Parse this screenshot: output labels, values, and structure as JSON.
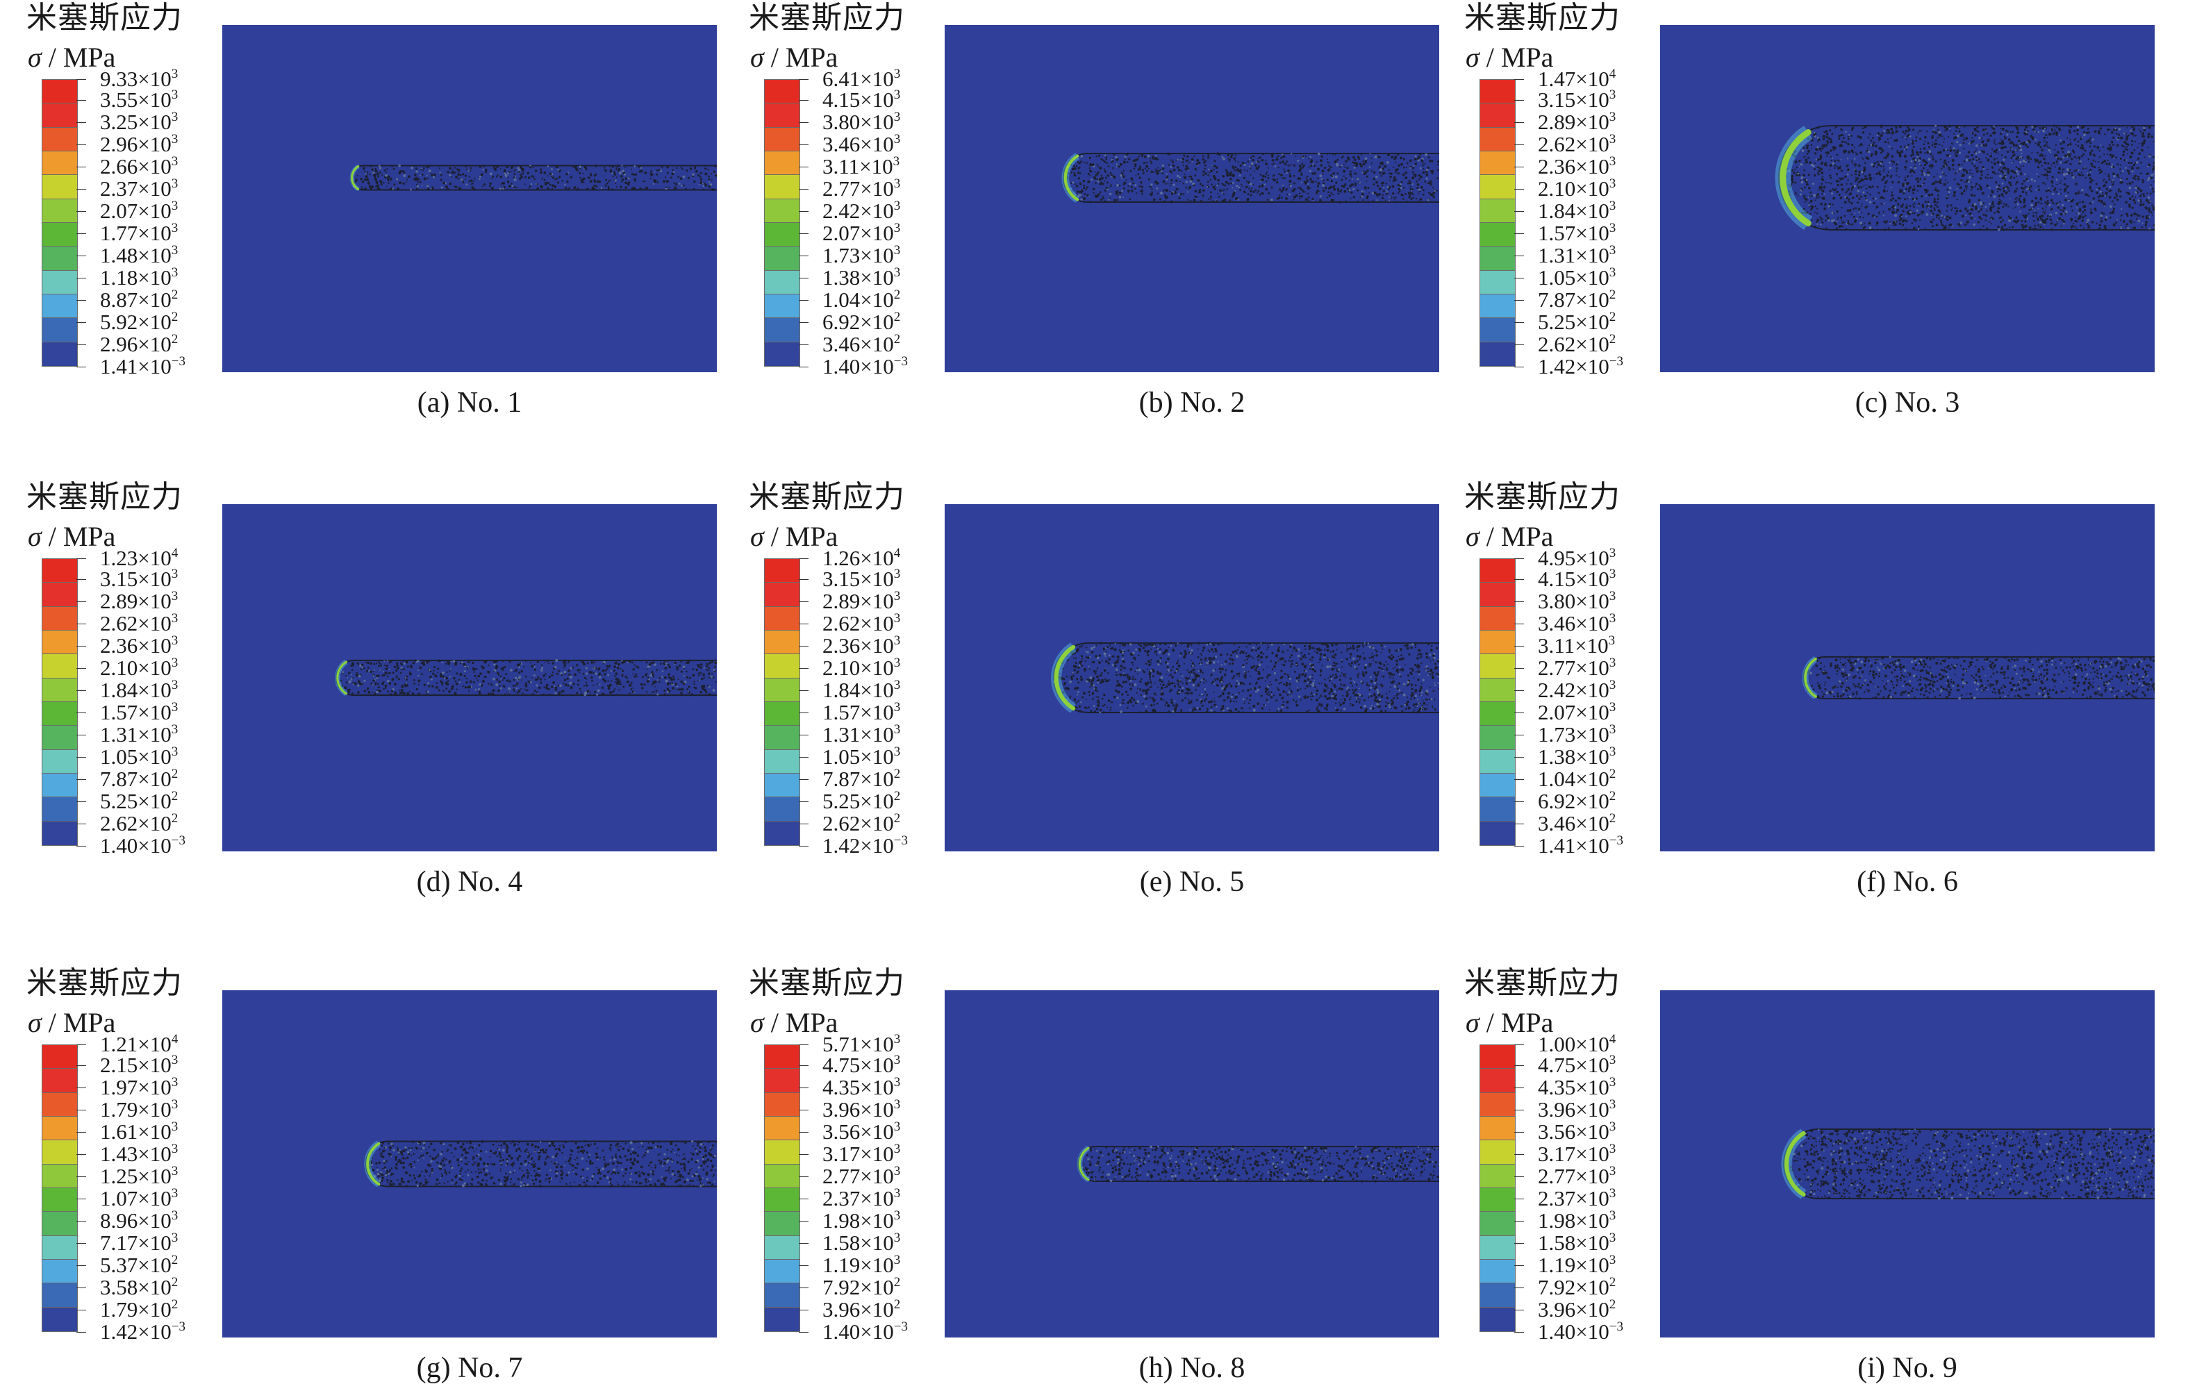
{
  "colors": {
    "background": "#303f99",
    "legend_bands_top_to_bottom": [
      "#e32b22",
      "#e4312b",
      "#e95a2a",
      "#ee9a2c",
      "#c8d22f",
      "#8fc93b",
      "#5cb737",
      "#56b45f",
      "#6cc7bd",
      "#52a9de",
      "#3a6ab5",
      "#33449c"
    ],
    "crack_dots": "#1b2030"
  },
  "panels": [
    {
      "id": "a",
      "title": "米塞斯应力",
      "unit_symbol": "σ",
      "unit_text": " / MPa",
      "caption": "(a) No. 1",
      "legend": [
        {
          "m": "9.33",
          "e": "3"
        },
        {
          "m": "3.55",
          "e": "3"
        },
        {
          "m": "3.25",
          "e": "3"
        },
        {
          "m": "2.96",
          "e": "3"
        },
        {
          "m": "2.66",
          "e": "3"
        },
        {
          "m": "2.37",
          "e": "3"
        },
        {
          "m": "2.07",
          "e": "3"
        },
        {
          "m": "1.77",
          "e": "3"
        },
        {
          "m": "1.48",
          "e": "3"
        },
        {
          "m": "1.18",
          "e": "3"
        },
        {
          "m": "8.87",
          "e": "2"
        },
        {
          "m": "5.92",
          "e": "2"
        },
        {
          "m": "2.96",
          "e": "2"
        },
        {
          "m": "1.41",
          "e": "−3"
        }
      ],
      "crack": {
        "tip": 0.26,
        "half_width": 0.035,
        "center": 0.44,
        "cap": "left"
      }
    },
    {
      "id": "b",
      "title": "米塞斯应力",
      "unit_symbol": "σ",
      "unit_text": " / MPa",
      "caption": "(b) No. 2",
      "legend": [
        {
          "m": "6.41",
          "e": "3"
        },
        {
          "m": "4.15",
          "e": "3"
        },
        {
          "m": "3.80",
          "e": "3"
        },
        {
          "m": "3.46",
          "e": "3"
        },
        {
          "m": "3.11",
          "e": "3"
        },
        {
          "m": "2.77",
          "e": "3"
        },
        {
          "m": "2.42",
          "e": "3"
        },
        {
          "m": "2.07",
          "e": "3"
        },
        {
          "m": "1.73",
          "e": "3"
        },
        {
          "m": "1.38",
          "e": "3"
        },
        {
          "m": "1.04",
          "e": "2"
        },
        {
          "m": "6.92",
          "e": "2"
        },
        {
          "m": "3.46",
          "e": "2"
        },
        {
          "m": "1.40",
          "e": "−3"
        }
      ],
      "crack": {
        "tip": 0.24,
        "half_width": 0.07,
        "center": 0.44,
        "cap": "left"
      }
    },
    {
      "id": "c",
      "title": "米塞斯应力",
      "unit_symbol": "σ",
      "unit_text": " / MPa",
      "caption": "(c) No. 3",
      "legend": [
        {
          "m": "1.47",
          "e": "4"
        },
        {
          "m": "3.15",
          "e": "3"
        },
        {
          "m": "2.89",
          "e": "3"
        },
        {
          "m": "2.62",
          "e": "3"
        },
        {
          "m": "2.36",
          "e": "3"
        },
        {
          "m": "2.10",
          "e": "3"
        },
        {
          "m": "1.84",
          "e": "3"
        },
        {
          "m": "1.57",
          "e": "3"
        },
        {
          "m": "1.31",
          "e": "3"
        },
        {
          "m": "1.05",
          "e": "3"
        },
        {
          "m": "7.87",
          "e": "2"
        },
        {
          "m": "5.25",
          "e": "2"
        },
        {
          "m": "2.62",
          "e": "2"
        },
        {
          "m": "1.42",
          "e": "−3"
        }
      ],
      "crack": {
        "tip": 0.24,
        "half_width": 0.15,
        "center": 0.44,
        "cap": "left"
      }
    },
    {
      "id": "d",
      "title": "米塞斯应力",
      "unit_symbol": "σ",
      "unit_text": " / MPa",
      "caption": "(d) No. 4",
      "legend": [
        {
          "m": "1.23",
          "e": "4"
        },
        {
          "m": "3.15",
          "e": "3"
        },
        {
          "m": "2.89",
          "e": "3"
        },
        {
          "m": "2.62",
          "e": "3"
        },
        {
          "m": "2.36",
          "e": "3"
        },
        {
          "m": "2.10",
          "e": "3"
        },
        {
          "m": "1.84",
          "e": "3"
        },
        {
          "m": "1.57",
          "e": "3"
        },
        {
          "m": "1.31",
          "e": "3"
        },
        {
          "m": "1.05",
          "e": "3"
        },
        {
          "m": "7.87",
          "e": "2"
        },
        {
          "m": "5.25",
          "e": "2"
        },
        {
          "m": "2.62",
          "e": "2"
        },
        {
          "m": "1.40",
          "e": "−3"
        }
      ],
      "crack": {
        "tip": 0.23,
        "half_width": 0.05,
        "center": 0.5,
        "cap": "left"
      }
    },
    {
      "id": "e",
      "title": "米塞斯应力",
      "unit_symbol": "σ",
      "unit_text": " / MPa",
      "caption": "(e) No. 5",
      "legend": [
        {
          "m": "1.26",
          "e": "4"
        },
        {
          "m": "3.15",
          "e": "3"
        },
        {
          "m": "2.89",
          "e": "3"
        },
        {
          "m": "2.62",
          "e": "3"
        },
        {
          "m": "2.36",
          "e": "3"
        },
        {
          "m": "2.10",
          "e": "3"
        },
        {
          "m": "1.84",
          "e": "3"
        },
        {
          "m": "1.57",
          "e": "3"
        },
        {
          "m": "1.31",
          "e": "3"
        },
        {
          "m": "1.05",
          "e": "3"
        },
        {
          "m": "7.87",
          "e": "2"
        },
        {
          "m": "5.25",
          "e": "2"
        },
        {
          "m": "2.62",
          "e": "2"
        },
        {
          "m": "1.42",
          "e": "−3"
        }
      ],
      "crack": {
        "tip": 0.22,
        "half_width": 0.1,
        "center": 0.5,
        "cap": "left"
      }
    },
    {
      "id": "f",
      "title": "米塞斯应力",
      "unit_symbol": "σ",
      "unit_text": " / MPa",
      "caption": "(f) No. 6",
      "legend": [
        {
          "m": "4.95",
          "e": "3"
        },
        {
          "m": "4.15",
          "e": "3"
        },
        {
          "m": "3.80",
          "e": "3"
        },
        {
          "m": "3.46",
          "e": "3"
        },
        {
          "m": "3.11",
          "e": "3"
        },
        {
          "m": "2.77",
          "e": "3"
        },
        {
          "m": "2.42",
          "e": "3"
        },
        {
          "m": "2.07",
          "e": "3"
        },
        {
          "m": "1.73",
          "e": "3"
        },
        {
          "m": "1.38",
          "e": "3"
        },
        {
          "m": "1.04",
          "e": "2"
        },
        {
          "m": "6.92",
          "e": "2"
        },
        {
          "m": "3.46",
          "e": "2"
        },
        {
          "m": "1.41",
          "e": "−3"
        }
      ],
      "crack": {
        "tip": 0.29,
        "half_width": 0.06,
        "center": 0.5,
        "cap": "left"
      }
    },
    {
      "id": "g",
      "title": "米塞斯应力",
      "unit_symbol": "σ",
      "unit_text": " / MPa",
      "caption": "(g) No. 7",
      "legend": [
        {
          "m": "1.21",
          "e": "4"
        },
        {
          "m": "2.15",
          "e": "3"
        },
        {
          "m": "1.97",
          "e": "3"
        },
        {
          "m": "1.79",
          "e": "3"
        },
        {
          "m": "1.61",
          "e": "3"
        },
        {
          "m": "1.43",
          "e": "3"
        },
        {
          "m": "1.25",
          "e": "3"
        },
        {
          "m": "1.07",
          "e": "3"
        },
        {
          "m": "8.96",
          "e": "3"
        },
        {
          "m": "7.17",
          "e": "3"
        },
        {
          "m": "5.37",
          "e": "2"
        },
        {
          "m": "3.58",
          "e": "2"
        },
        {
          "m": "1.79",
          "e": "2"
        },
        {
          "m": "1.42",
          "e": "−3"
        }
      ],
      "crack": {
        "tip": 0.29,
        "half_width": 0.065,
        "center": 0.5,
        "cap": "left"
      }
    },
    {
      "id": "h",
      "title": "米塞斯应力",
      "unit_symbol": "σ",
      "unit_text": " / MPa",
      "caption": "(h) No. 8",
      "legend": [
        {
          "m": "5.71",
          "e": "3"
        },
        {
          "m": "4.75",
          "e": "3"
        },
        {
          "m": "4.35",
          "e": "3"
        },
        {
          "m": "3.96",
          "e": "3"
        },
        {
          "m": "3.56",
          "e": "3"
        },
        {
          "m": "3.17",
          "e": "3"
        },
        {
          "m": "2.77",
          "e": "3"
        },
        {
          "m": "2.37",
          "e": "3"
        },
        {
          "m": "1.98",
          "e": "3"
        },
        {
          "m": "1.58",
          "e": "3"
        },
        {
          "m": "1.19",
          "e": "3"
        },
        {
          "m": "7.92",
          "e": "2"
        },
        {
          "m": "3.96",
          "e": "2"
        },
        {
          "m": "1.40",
          "e": "−3"
        }
      ],
      "crack": {
        "tip": 0.27,
        "half_width": 0.05,
        "center": 0.5,
        "cap": "left"
      }
    },
    {
      "id": "i",
      "title": "米塞斯应力",
      "unit_symbol": "σ",
      "unit_text": " / MPa",
      "caption": "(i) No. 9",
      "legend": [
        {
          "m": "1.00",
          "e": "4"
        },
        {
          "m": "4.75",
          "e": "3"
        },
        {
          "m": "4.35",
          "e": "3"
        },
        {
          "m": "3.96",
          "e": "3"
        },
        {
          "m": "3.56",
          "e": "3"
        },
        {
          "m": "3.17",
          "e": "3"
        },
        {
          "m": "2.77",
          "e": "3"
        },
        {
          "m": "2.37",
          "e": "3"
        },
        {
          "m": "1.98",
          "e": "3"
        },
        {
          "m": "1.58",
          "e": "3"
        },
        {
          "m": "1.19",
          "e": "3"
        },
        {
          "m": "7.92",
          "e": "2"
        },
        {
          "m": "3.96",
          "e": "2"
        },
        {
          "m": "1.40",
          "e": "−3"
        }
      ],
      "crack": {
        "tip": 0.25,
        "half_width": 0.1,
        "center": 0.5,
        "cap": "left"
      }
    }
  ]
}
